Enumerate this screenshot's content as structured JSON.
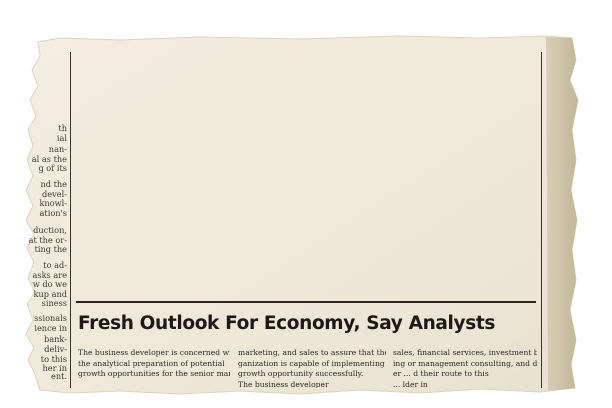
{
  "article": {
    "headline": "Fresh Outlook For Economy, Say Analysts",
    "columns": [
      [
        "The business developer is concerned with",
        "the analytical preparation of potential",
        "growth opportunities for the senior man-"
      ],
      [
        "marketing, and sales to assure that the or-",
        "ganization is capable of implementing the",
        "growth opportunity successfully.",
        "The business developer"
      ],
      [
        "sales, financial services, investment bank-",
        "ing or management consulting, and deliv-",
        "er ... d their route to this",
        "... lder in"
      ]
    ]
  },
  "left_fragments": [
    "th",
    "ial",
    "nan-",
    "al as the",
    "g of its",
    "nd the",
    "devel-",
    "knowl-",
    "ation's",
    "duction,",
    "at the or-",
    "ting the",
    "to ad-",
    "asks are",
    "w do we",
    "kup and",
    "siness",
    "ssionals",
    "ience in",
    "bank-",
    "deliv-",
    "to this",
    "her in",
    "ent."
  ],
  "colors": {
    "paper": "#f1ebdd",
    "paper_shadow": "#e3dbc8",
    "right_strip": "#cfc4ab",
    "ink": "#1c1916"
  }
}
